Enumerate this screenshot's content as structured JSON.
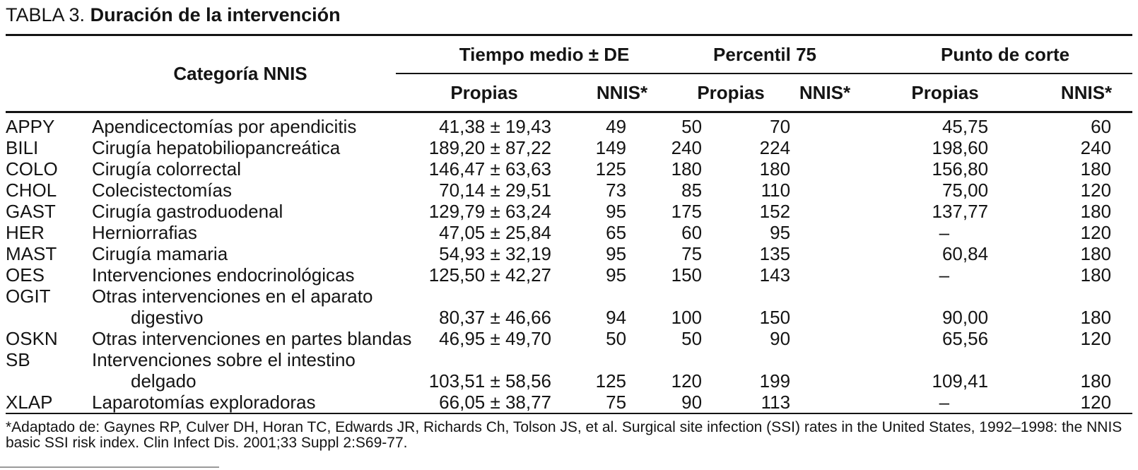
{
  "title": {
    "prefix": "TABLA 3.",
    "text": "Duración de la intervención"
  },
  "table": {
    "col_headers": {
      "category": "Categoría NNIS",
      "groups": [
        {
          "label": "Tiempo medio ± DE"
        },
        {
          "label": "Percentil 75"
        },
        {
          "label": "Punto de corte"
        }
      ],
      "sub": [
        "Propias",
        "NNIS*",
        "Propias",
        "NNIS*",
        "Propias",
        "NNIS*"
      ]
    },
    "rows": [
      {
        "code": "APPY",
        "desc": "Apendicectomías por apendicitis",
        "values": [
          "41,38 ± 19,43",
          "49",
          "50",
          "70",
          "45,75",
          "60"
        ]
      },
      {
        "code": "BILI",
        "desc": "Cirugía hepatobiliopancreática",
        "values": [
          "189,20 ± 87,22",
          "149",
          "240",
          "224",
          "198,60",
          "240"
        ]
      },
      {
        "code": "COLO",
        "desc": "Cirugía colorrectal",
        "values": [
          "146,47 ± 63,63",
          "125",
          "180",
          "180",
          "156,80",
          "180"
        ]
      },
      {
        "code": "CHOL",
        "desc": "Colecistectomías",
        "values": [
          "70,14 ± 29,51",
          "73",
          "85",
          "110",
          "75,00",
          "120"
        ]
      },
      {
        "code": "GAST",
        "desc": "Cirugía gastroduodenal",
        "values": [
          "129,79 ± 63,24",
          "95",
          "175",
          "152",
          "137,77",
          "180"
        ]
      },
      {
        "code": "HER",
        "desc": "Herniorrafias",
        "values": [
          "47,05 ± 25,84",
          "65",
          "60",
          "95",
          "–",
          "120"
        ]
      },
      {
        "code": "MAST",
        "desc": "Cirugía mamaria",
        "values": [
          "54,93 ± 32,19",
          "95",
          "75",
          "135",
          "60,84",
          "180"
        ]
      },
      {
        "code": "OES",
        "desc": "Intervenciones endocrinológicas",
        "values": [
          "125,50 ± 42,27",
          "95",
          "150",
          "143",
          "–",
          "180"
        ]
      },
      {
        "code": "OGIT",
        "desc": "Otras intervenciones en el aparato",
        "desc2": "digestivo",
        "values": [
          "80,37 ± 46,66",
          "94",
          "100",
          "150",
          "90,00",
          "180"
        ]
      },
      {
        "code": "OSKN",
        "desc": "Otras intervenciones en partes blandas",
        "values": [
          "46,95 ± 49,70",
          "50",
          "50",
          "90",
          "65,56",
          "120"
        ]
      },
      {
        "code": "SB",
        "desc": "Intervenciones sobre el intestino",
        "desc2": "delgado",
        "values": [
          "103,51 ± 58,56",
          "125",
          "120",
          "199",
          "109,41",
          "180"
        ]
      },
      {
        "code": "XLAP",
        "desc": "Laparotomías exploradoras",
        "values": [
          "66,05 ± 38,77",
          "75",
          "90",
          "113",
          "–",
          "120"
        ]
      }
    ]
  },
  "footnote": "*Adaptado de: Gaynes RP, Culver DH, Horan TC, Edwards JR, Richards Ch, Tolson JS, et al. Surgical site infection (SSI) rates in the United States, 1992–1998: the NNIS basic SSI risk index. Clin Infect Dis. 2001;33 Suppl 2:S69-77."
}
